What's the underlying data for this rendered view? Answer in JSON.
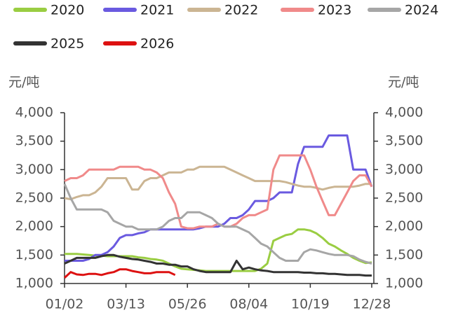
{
  "chart_data": {
    "type": "line",
    "y_label": "元/吨",
    "y2_label": "元/吨",
    "categories": [
      "01/02",
      null,
      null,
      null,
      null,
      null,
      null,
      null,
      null,
      null,
      "03/13",
      null,
      null,
      null,
      null,
      null,
      null,
      null,
      null,
      null,
      "05/26",
      null,
      null,
      null,
      null,
      null,
      null,
      null,
      null,
      null,
      "08/04",
      null,
      null,
      null,
      null,
      null,
      null,
      null,
      null,
      null,
      "10/19",
      null,
      null,
      null,
      null,
      null,
      null,
      null,
      null,
      null,
      "12/28"
    ],
    "ylim": [
      1000,
      4000
    ],
    "yticks": [
      {
        "value": 1000,
        "label": "1,000"
      },
      {
        "value": 1500,
        "label": "1,500"
      },
      {
        "value": 2000,
        "label": "2,000"
      },
      {
        "value": 2500,
        "label": "2,500"
      },
      {
        "value": 3000,
        "label": "3,000"
      },
      {
        "value": 3500,
        "label": "3,500"
      },
      {
        "value": 4000,
        "label": "4,000"
      }
    ],
    "y2lim": [
      1000,
      4000
    ],
    "y2ticks": [
      {
        "value": 1000,
        "label": "1,000"
      },
      {
        "value": 1500,
        "label": "1,500"
      },
      {
        "value": 2000,
        "label": "2,000"
      },
      {
        "value": 2500,
        "label": "2,500"
      },
      {
        "value": 3000,
        "label": "3,000"
      },
      {
        "value": 3500,
        "label": "3,500"
      },
      {
        "value": 4000,
        "label": "4,000"
      }
    ],
    "grid": false,
    "series": [
      {
        "name": "2020",
        "color": "#9acd42",
        "values": [
          1520,
          1520,
          1520,
          1510,
          1500,
          1490,
          1490,
          1480,
          1480,
          1480,
          1480,
          1480,
          1460,
          1450,
          1430,
          1420,
          1400,
          1350,
          1300,
          1260,
          1250,
          1240,
          1230,
          1220,
          1220,
          1220,
          1220,
          1220,
          1220,
          1220,
          1220,
          1220,
          1260,
          1350,
          1750,
          1800,
          1850,
          1870,
          1950,
          1950,
          1930,
          1880,
          1800,
          1700,
          1650,
          1580,
          1520,
          1450,
          1400,
          1360,
          1370
        ]
      },
      {
        "name": "2021",
        "color": "#6a5ae0",
        "values": [
          1400,
          1400,
          1400,
          1400,
          1430,
          1500,
          1500,
          1550,
          1650,
          1800,
          1850,
          1850,
          1880,
          1900,
          1950,
          1950,
          1950,
          1950,
          1950,
          1950,
          1950,
          1950,
          1970,
          2000,
          2000,
          2000,
          2050,
          2150,
          2150,
          2200,
          2300,
          2450,
          2450,
          2450,
          2500,
          2600,
          2600,
          2600,
          3100,
          3400,
          3400,
          3400,
          3400,
          3600,
          3600,
          3600,
          3600,
          3000,
          3000,
          3000,
          2700
        ]
      },
      {
        "name": "2022",
        "color": "#cbb593",
        "values": [
          2500,
          2480,
          2520,
          2550,
          2550,
          2600,
          2700,
          2850,
          2850,
          2850,
          2850,
          2650,
          2650,
          2800,
          2850,
          2850,
          2900,
          2950,
          2950,
          2950,
          3000,
          3000,
          3050,
          3050,
          3050,
          3050,
          3050,
          3000,
          2950,
          2900,
          2850,
          2800,
          2800,
          2800,
          2800,
          2800,
          2780,
          2750,
          2720,
          2700,
          2700,
          2680,
          2650,
          2680,
          2700,
          2700,
          2700,
          2700,
          2720,
          2750,
          2750
        ]
      },
      {
        "name": "2023",
        "color": "#f08a8a",
        "values": [
          2800,
          2850,
          2850,
          2900,
          3000,
          3000,
          3000,
          3000,
          3000,
          3050,
          3050,
          3050,
          3050,
          3000,
          3000,
          2950,
          2850,
          2600,
          2400,
          2000,
          1970,
          1970,
          2000,
          2000,
          2000,
          2050,
          2000,
          2000,
          2050,
          2150,
          2200,
          2200,
          2250,
          2300,
          3000,
          3250,
          3250,
          3250,
          3250,
          3250,
          3000,
          2700,
          2450,
          2200,
          2200,
          2400,
          2600,
          2800,
          2900,
          2900,
          2700
        ]
      },
      {
        "name": "2024",
        "color": "#a6a6a6",
        "values": [
          2750,
          2500,
          2300,
          2300,
          2300,
          2300,
          2300,
          2250,
          2100,
          2050,
          2000,
          2000,
          1950,
          1950,
          1950,
          1950,
          2000,
          2100,
          2150,
          2150,
          2250,
          2250,
          2250,
          2200,
          2150,
          2050,
          2000,
          2000,
          2000,
          1950,
          1900,
          1800,
          1700,
          1650,
          1550,
          1450,
          1400,
          1400,
          1400,
          1550,
          1600,
          1580,
          1550,
          1520,
          1500,
          1500,
          1500,
          1480,
          1420,
          1380,
          1350
        ]
      },
      {
        "name": "2025",
        "color": "#333333",
        "values": [
          1350,
          1400,
          1450,
          1450,
          1450,
          1450,
          1480,
          1500,
          1500,
          1470,
          1450,
          1430,
          1420,
          1400,
          1380,
          1350,
          1350,
          1330,
          1330,
          1300,
          1300,
          1250,
          1220,
          1200,
          1200,
          1200,
          1200,
          1200,
          1400,
          1250,
          1280,
          1250,
          1230,
          1220,
          1200,
          1200,
          1200,
          1200,
          1200,
          1190,
          1190,
          1180,
          1180,
          1170,
          1170,
          1160,
          1150,
          1150,
          1150,
          1140,
          1140
        ]
      },
      {
        "name": "2026",
        "color": "#dd1111",
        "values": [
          1100,
          1200,
          1160,
          1150,
          1170,
          1170,
          1150,
          1180,
          1200,
          1250,
          1250,
          1220,
          1200,
          1180,
          1180,
          1200,
          1200,
          1200,
          1150,
          null,
          null,
          null,
          null,
          null,
          null,
          null,
          null,
          null,
          null,
          null,
          null,
          null,
          null,
          null,
          null,
          null,
          null,
          null,
          null,
          null,
          null,
          null,
          null,
          null,
          null,
          null,
          null,
          null,
          null,
          null,
          null
        ]
      }
    ]
  }
}
